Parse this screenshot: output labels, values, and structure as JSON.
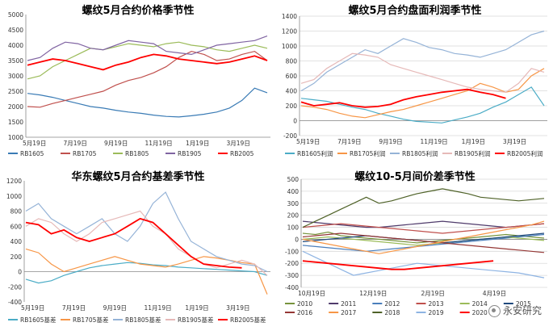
{
  "chart_data": [
    {
      "type": "line",
      "title": "螺纹5月合约价格季节性",
      "x_ticks": [
        "5月19日",
        "7月19日",
        "9月19日",
        "11月19日",
        "1月19日",
        "3月19日"
      ],
      "y_ticks": [
        1000,
        1500,
        2000,
        2500,
        3000,
        3500,
        4000,
        4500,
        5000
      ],
      "ylim": [
        1000,
        5000
      ],
      "grid": false,
      "legend_placement": "bottom",
      "series": [
        {
          "name": "RB1605",
          "color": "#3A7BB5",
          "values": [
            2430,
            2380,
            2300,
            2200,
            2100,
            2000,
            1950,
            1880,
            1820,
            1780,
            1720,
            1680,
            1660,
            1700,
            1750,
            1820,
            1950,
            2200,
            2600,
            2450
          ]
        },
        {
          "name": "RB1705",
          "color": "#C0504D",
          "values": [
            2000,
            1980,
            2100,
            2200,
            2300,
            2400,
            2500,
            2700,
            2850,
            2950,
            3100,
            3300,
            3600,
            3800,
            3700,
            3500,
            3550,
            3700,
            3800,
            3500
          ]
        },
        {
          "name": "RB1805",
          "color": "#9BBB59",
          "values": [
            2900,
            3000,
            3300,
            3500,
            3700,
            3900,
            3850,
            3950,
            4050,
            4000,
            3950,
            4050,
            4100,
            4000,
            3950,
            3850,
            3800,
            3900,
            4000,
            3900
          ]
        },
        {
          "name": "RB1905",
          "color": "#8064A2",
          "values": [
            3500,
            3600,
            3900,
            4100,
            4050,
            3900,
            3850,
            4000,
            4150,
            4100,
            4050,
            3800,
            3750,
            3700,
            3850,
            4000,
            4050,
            4100,
            4150,
            4300
          ]
        },
        {
          "name": "RB2005",
          "color": "#FF0000",
          "values": [
            3350,
            3450,
            3550,
            3500,
            3400,
            3300,
            3200,
            3350,
            3450,
            3600,
            3700,
            3650,
            3550,
            3500,
            3450,
            3400,
            3450,
            3550,
            3650,
            3500
          ]
        }
      ]
    },
    {
      "type": "line",
      "title": "螺纹5月合约盘面利润季节性",
      "x_ticks": [
        "5月19日",
        "7月19日",
        "9月19日",
        "11月19日",
        "1月19日",
        "3月19日"
      ],
      "y_ticks": [
        -200,
        0,
        200,
        400,
        600,
        800,
        1000,
        1200,
        1400
      ],
      "ylim": [
        -200,
        1400
      ],
      "grid": true,
      "legend_placement": "bottom",
      "series": [
        {
          "name": "RB1605利润",
          "color": "#4BACC6",
          "values": [
            300,
            280,
            260,
            220,
            180,
            150,
            100,
            60,
            20,
            -10,
            -20,
            -30,
            10,
            50,
            100,
            180,
            250,
            350,
            450,
            200
          ]
        },
        {
          "name": "RB1705利润",
          "color": "#F79646",
          "values": [
            200,
            180,
            150,
            100,
            60,
            40,
            80,
            120,
            150,
            200,
            250,
            300,
            350,
            400,
            500,
            450,
            380,
            420,
            600,
            700
          ]
        },
        {
          "name": "RB1805利润",
          "color": "#95B3D7",
          "values": [
            400,
            500,
            650,
            750,
            850,
            950,
            900,
            1000,
            1100,
            1050,
            980,
            950,
            900,
            880,
            850,
            900,
            950,
            1050,
            1150,
            1200
          ]
        },
        {
          "name": "RB1905利润",
          "color": "#E6B9B8",
          "values": [
            500,
            550,
            700,
            800,
            900,
            880,
            850,
            750,
            700,
            650,
            600,
            550,
            500,
            450,
            420,
            400,
            380,
            500,
            700,
            650
          ]
        },
        {
          "name": "RB2005利润",
          "color": "#FF0000",
          "values": [
            250,
            200,
            220,
            240,
            200,
            180,
            190,
            220,
            280,
            320,
            350,
            380,
            400,
            420,
            380,
            350,
            300,
            null,
            null,
            null
          ]
        }
      ]
    },
    {
      "type": "line",
      "title": "华东螺纹5月合约基差季节性",
      "x_ticks": [
        "5月19日",
        "7月19日",
        "9月19日",
        "11月19日",
        "1月19日",
        "3月19日"
      ],
      "y_ticks": [
        -400,
        -200,
        0,
        200,
        400,
        600,
        800,
        1000,
        1200
      ],
      "ylim": [
        -400,
        1200
      ],
      "grid": false,
      "legend_placement": "bottom",
      "series": [
        {
          "name": "RB1605基差",
          "color": "#4BACC6",
          "values": [
            -100,
            -150,
            -120,
            -50,
            0,
            50,
            80,
            100,
            120,
            110,
            90,
            80,
            60,
            50,
            40,
            30,
            20,
            10,
            0,
            -50
          ]
        },
        {
          "name": "RB1705基差",
          "color": "#F79646",
          "values": [
            300,
            250,
            100,
            0,
            50,
            100,
            150,
            200,
            150,
            100,
            80,
            60,
            100,
            150,
            200,
            180,
            150,
            120,
            100,
            -300
          ]
        },
        {
          "name": "RB1805基差",
          "color": "#95B3D7",
          "values": [
            800,
            900,
            700,
            600,
            500,
            600,
            700,
            500,
            400,
            600,
            900,
            1050,
            700,
            400,
            300,
            200,
            150,
            100,
            80,
            0
          ]
        },
        {
          "name": "RB1905基差",
          "color": "#E6B9B8",
          "values": [
            600,
            700,
            650,
            500,
            400,
            500,
            650,
            700,
            750,
            800,
            600,
            500,
            300,
            200,
            100,
            50,
            100,
            150,
            100,
            -50
          ]
        },
        {
          "name": "RB2005基差",
          "color": "#FF0000",
          "values": [
            650,
            620,
            500,
            550,
            450,
            400,
            450,
            500,
            600,
            700,
            650,
            500,
            350,
            200,
            100,
            80,
            60,
            50,
            null,
            null
          ]
        }
      ]
    },
    {
      "type": "line",
      "title": "螺纹10-5月间价差季节性",
      "x_ticks": [
        "10月19日",
        "12月19日",
        "2月19日",
        "4月19日"
      ],
      "y_ticks": [
        -400,
        -300,
        -200,
        -100,
        0,
        100,
        200,
        300,
        400,
        500
      ],
      "ylim": [
        -400,
        500
      ],
      "grid": true,
      "legend_placement": "bottom",
      "series": [
        {
          "name": "2010",
          "color": "#77933C",
          "values": [
            50,
            40,
            60,
            30,
            20,
            10,
            0,
            -10,
            -20,
            -30,
            -20,
            -10,
            0,
            10,
            20,
            30,
            40,
            30,
            20,
            10
          ]
        },
        {
          "name": "2011",
          "color": "#4F3B6B",
          "values": [
            150,
            140,
            130,
            120,
            110,
            100,
            100,
            110,
            120,
            130,
            140,
            150,
            140,
            130,
            120,
            110,
            100,
            110,
            120,
            130
          ]
        },
        {
          "name": "2012",
          "color": "#4A7EBB",
          "values": [
            -50,
            -60,
            -70,
            -80,
            -90,
            -100,
            -90,
            -80,
            -70,
            -60,
            -50,
            -40,
            -30,
            -20,
            -10,
            0,
            10,
            20,
            30,
            40
          ]
        },
        {
          "name": "2013",
          "color": "#C0504D",
          "values": [
            100,
            110,
            120,
            130,
            120,
            110,
            100,
            90,
            80,
            70,
            60,
            50,
            60,
            70,
            80,
            90,
            100,
            110,
            120,
            130
          ]
        },
        {
          "name": "2014",
          "color": "#9BBB59",
          "values": [
            0,
            10,
            20,
            10,
            0,
            -10,
            -20,
            -30,
            -40,
            -50,
            -40,
            -30,
            -20,
            -10,
            0,
            10,
            20,
            10,
            0,
            -10
          ]
        },
        {
          "name": "2015",
          "color": "#1F497D",
          "values": [
            -20,
            -10,
            0,
            10,
            20,
            30,
            20,
            10,
            0,
            -10,
            -20,
            -30,
            -20,
            -10,
            0,
            10,
            20,
            30,
            40,
            50
          ]
        },
        {
          "name": "2016",
          "color": "#953735",
          "values": [
            20,
            30,
            40,
            50,
            40,
            30,
            20,
            10,
            0,
            -10,
            -20,
            -30,
            -40,
            -50,
            -60,
            -70,
            -80,
            -90,
            -100,
            -110
          ]
        },
        {
          "name": "2017",
          "color": "#F79646",
          "values": [
            0,
            -20,
            -40,
            -60,
            -80,
            -100,
            -120,
            -100,
            -80,
            -60,
            -40,
            -20,
            0,
            20,
            40,
            60,
            80,
            100,
            120,
            150
          ]
        },
        {
          "name": "2018",
          "color": "#4F6228",
          "values": [
            100,
            150,
            200,
            250,
            300,
            350,
            300,
            320,
            350,
            380,
            400,
            420,
            400,
            380,
            350,
            340,
            330,
            320,
            330,
            340
          ]
        },
        {
          "name": "2019",
          "color": "#8EB4E3",
          "values": [
            -100,
            -150,
            -200,
            -250,
            -300,
            -280,
            -260,
            -240,
            -220,
            -200,
            -210,
            -220,
            -230,
            -240,
            -250,
            -260,
            -270,
            -280,
            -300,
            -320
          ]
        },
        {
          "name": "2020",
          "color": "#FF0000",
          "values": [
            -180,
            -190,
            -200,
            -210,
            -220,
            -230,
            -240,
            -250,
            -250,
            -240,
            -230,
            -220,
            -210,
            -200,
            -190,
            -180,
            null,
            null,
            null,
            null
          ]
        }
      ]
    }
  ],
  "watermark": "永安研究"
}
